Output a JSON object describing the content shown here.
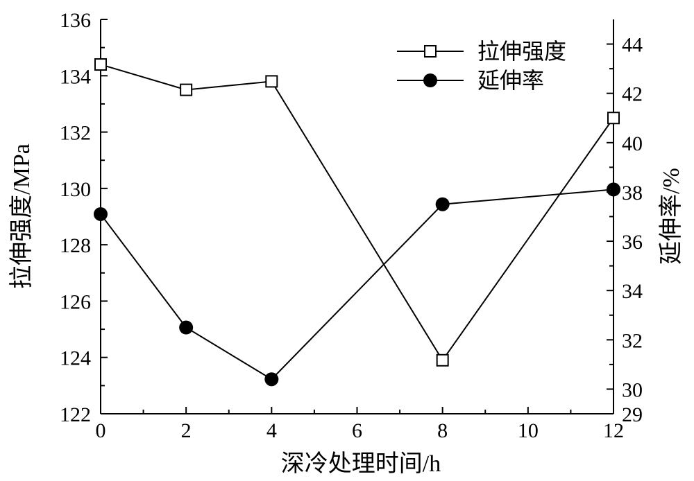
{
  "chart_data": {
    "type": "line",
    "x": [
      0,
      2,
      4,
      8,
      12
    ],
    "xlim": [
      0,
      12
    ],
    "x_ticks": [
      "0",
      "2",
      "4",
      "6",
      "8",
      "10",
      "12"
    ],
    "xlabel": "深冷处理时间/h",
    "y_left": {
      "label": "拉伸强度/MPa",
      "lim": [
        122,
        136
      ],
      "ticks": [
        "122",
        "124",
        "126",
        "128",
        "130",
        "132",
        "134",
        "136"
      ]
    },
    "y_right": {
      "label": "延伸率/%",
      "lim": [
        29,
        45
      ],
      "ticks": [
        "29",
        "30",
        "32",
        "34",
        "36",
        "38",
        "40",
        "42",
        "44"
      ]
    },
    "series": [
      {
        "name": "拉伸强度",
        "axis": "left",
        "marker": "open-square",
        "values": [
          134.4,
          133.5,
          133.8,
          123.9,
          132.5
        ]
      },
      {
        "name": "延伸率",
        "axis": "right",
        "marker": "filled-circle",
        "values": [
          37.1,
          32.5,
          30.4,
          37.5,
          38.1
        ]
      }
    ],
    "legend": {
      "placement": "top-right"
    },
    "grid": false
  }
}
